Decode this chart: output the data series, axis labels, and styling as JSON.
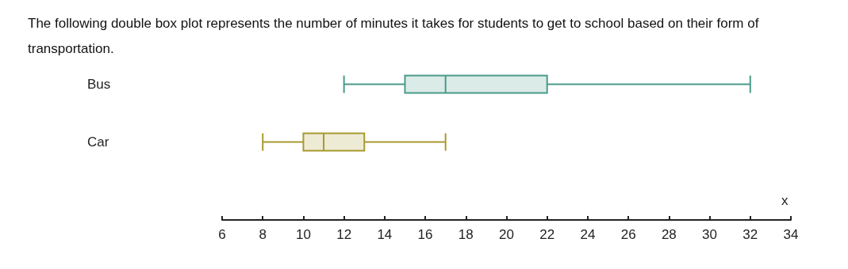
{
  "chart_data": {
    "type": "box",
    "orientation": "horizontal",
    "title": "The following double box plot represents the number of minutes it takes for students to get to school based on their form of transportation.",
    "xlabel": "x",
    "categories": [
      "Bus",
      "Car"
    ],
    "boxes": [
      {
        "low": 12,
        "q1": 15,
        "median": 17,
        "q3": 22,
        "high": 32
      },
      {
        "low": 8,
        "q1": 10,
        "median": 11,
        "q3": 13,
        "high": 17
      }
    ],
    "colors": [
      "#4a9a8a",
      "#a89a2e"
    ],
    "xlim": [
      6,
      34
    ],
    "xticks": [
      6,
      8,
      10,
      12,
      14,
      16,
      18,
      20,
      22,
      24,
      26,
      28,
      30,
      32,
      34
    ],
    "grid": false
  }
}
